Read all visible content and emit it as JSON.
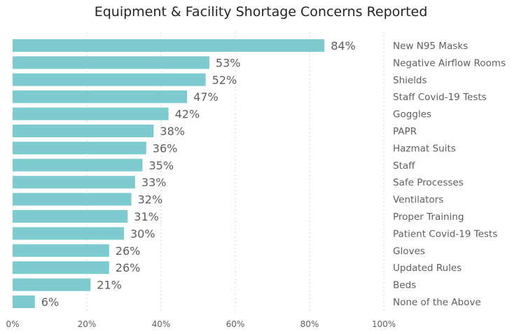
{
  "chart_data": {
    "type": "bar",
    "orientation": "horizontal",
    "title": "Equipment & Facility Shortage Concerns Reported",
    "categories": [
      "New N95 Masks",
      "Negative Airflow Rooms",
      "Shields",
      "Staff Covid-19 Tests",
      "Goggles",
      "PAPR",
      "Hazmat Suits",
      "Staff",
      "Safe Processes",
      "Ventilators",
      "Proper Training",
      "Patient Covid-19 Tests",
      "Gloves",
      "Updated Rules",
      "Beds",
      "None of the Above"
    ],
    "values": [
      84,
      53,
      52,
      47,
      42,
      38,
      36,
      35,
      33,
      32,
      31,
      30,
      26,
      26,
      21,
      6
    ],
    "data_labels": [
      "84%",
      "53%",
      "52%",
      "47%",
      "42%",
      "38%",
      "36%",
      "35%",
      "33%",
      "32%",
      "31%",
      "30%",
      "26%",
      "26%",
      "21%",
      "6%"
    ],
    "x_ticks": [
      "0%",
      "20%",
      "40%",
      "60%",
      "80%",
      "100%"
    ],
    "xlim": [
      0,
      100
    ],
    "grid": true,
    "category_labels_position": "right",
    "bar_color": "#7ECBCF"
  }
}
